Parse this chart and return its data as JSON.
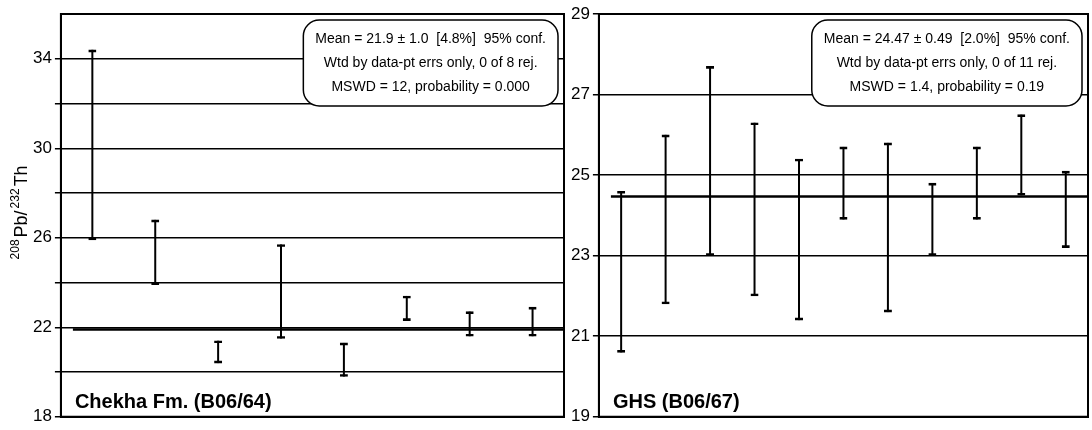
{
  "chart_data": [
    {
      "type": "bar",
      "ylabel": "$^{208}$Pb/$^{232}$Th",
      "categories": [
        null,
        null,
        null,
        null,
        null,
        null,
        null,
        null
      ],
      "base": [
        25.9,
        23.9,
        20.4,
        21.5,
        19.8,
        22.3,
        21.6,
        21.6
      ],
      "values": [
        8.5,
        2.9,
        1.0,
        4.2,
        1.5,
        1.1,
        1.1,
        1.3
      ],
      "color": "#000000",
      "ylim": [
        18,
        36
      ],
      "yticks": [
        18,
        {
          "value": 20,
          "label": null
        },
        22,
        {
          "value": 24,
          "label": null
        },
        26,
        {
          "value": 28,
          "label": null
        },
        30,
        {
          "value": 32,
          "label": null
        },
        34
      ],
      "grid": "y",
      "tick_labels": "y",
      "ref_lines": [
        {
          "axis": "y",
          "value": 21.9,
          "color": "#000000"
        }
      ],
      "annotations": [
        "Mean = 21.9 ± 1.0  [4.8%]  95% conf.",
        "Wtd by data-pt errs only, 0 of 8 rej.",
        "MSWD = 12, probability = 0.000",
        "Chekha Fm. (B06/64)"
      ]
    },
    {
      "type": "bar",
      "categories": [
        null,
        null,
        null,
        null,
        null,
        null,
        null,
        null,
        null,
        null,
        null
      ],
      "base": [
        20.6,
        21.8,
        23.0,
        22.0,
        21.4,
        23.9,
        21.6,
        23.0,
        23.9,
        24.5,
        23.2
      ],
      "values": [
        4.0,
        4.2,
        4.7,
        4.3,
        4.0,
        1.8,
        4.2,
        1.8,
        1.8,
        2.0,
        1.9
      ],
      "color": "#000000",
      "ylim": [
        19,
        29
      ],
      "yticks": [
        19,
        21,
        23,
        25,
        27,
        29
      ],
      "grid": "y",
      "tick_labels": "y",
      "ref_lines": [
        {
          "axis": "y",
          "value": 24.47,
          "color": "#000000"
        }
      ],
      "annotations": [
        "Mean = 24.47 ± 0.49  [2.0%]  95% conf.",
        "Wtd by data-pt errs only, 0 of 11 rej.",
        "MSWD = 1.4, probability = 0.19",
        "GHS (B06/67)"
      ]
    }
  ]
}
